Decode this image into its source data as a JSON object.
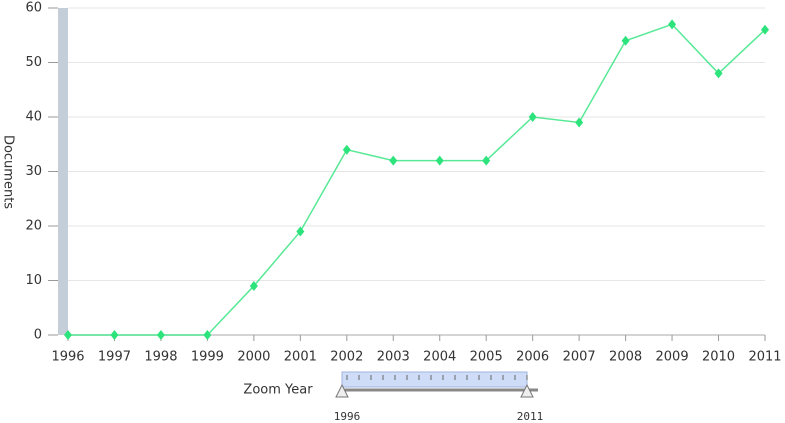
{
  "chart_data": {
    "type": "line",
    "y_label": "Documents",
    "x": [
      1996,
      1997,
      1998,
      1999,
      2000,
      2001,
      2002,
      2003,
      2004,
      2005,
      2006,
      2007,
      2008,
      2009,
      2010,
      2011
    ],
    "series": [
      {
        "name": "Documents",
        "color": "#2de37c",
        "values": [
          0,
          0,
          0,
          0,
          9,
          19,
          34,
          32,
          32,
          32,
          40,
          39,
          54,
          57,
          48,
          56
        ]
      }
    ],
    "xlim": [
      1996,
      2011
    ],
    "xticks": [
      1996,
      1997,
      1998,
      1999,
      2000,
      2001,
      2002,
      2003,
      2004,
      2005,
      2006,
      2007,
      2008,
      2009,
      2010,
      2011
    ],
    "ylim": [
      0,
      60
    ],
    "yticks": [
      0,
      10,
      20,
      30,
      40,
      50,
      60
    ],
    "grid": true
  },
  "zoom": {
    "label": "Zoom Year",
    "start": "1996",
    "end": "2011"
  }
}
